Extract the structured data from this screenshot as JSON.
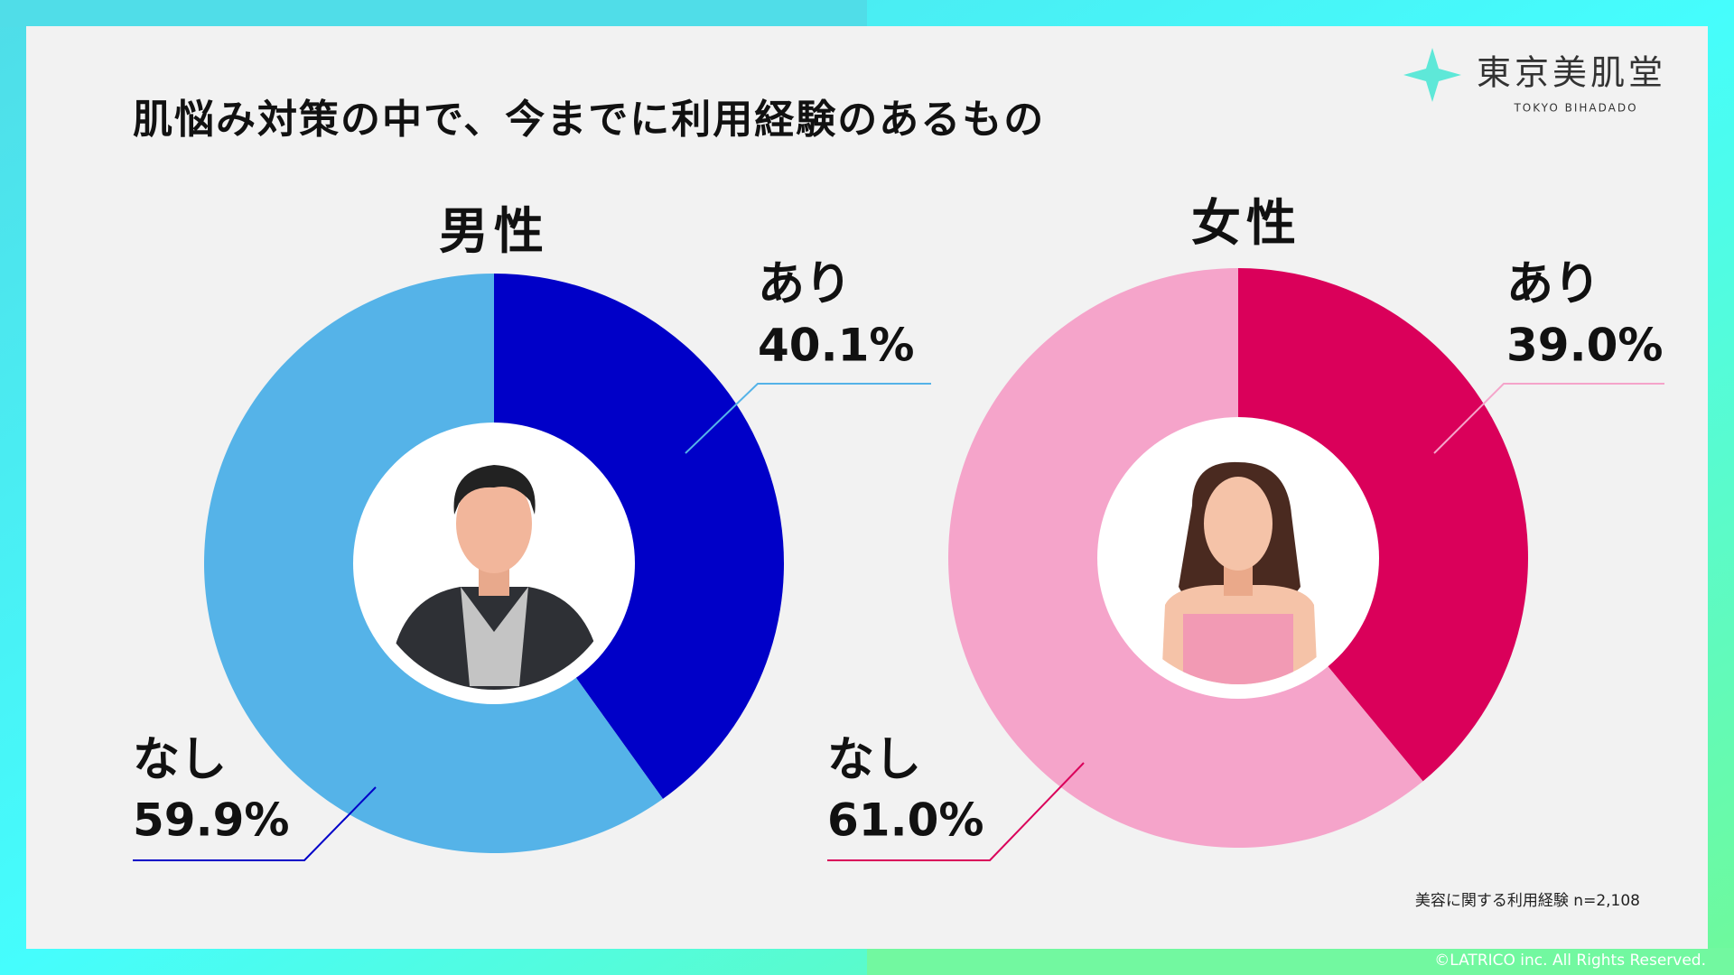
{
  "header": {
    "title": "肌悩み対策の中で、今までに利用経験のあるもの"
  },
  "logo": {
    "name": "東京美肌堂",
    "subtitle": "TOKYO BIHADADO"
  },
  "chart_data": [
    {
      "type": "donut",
      "title": "男性",
      "categories": [
        "あり",
        "なし"
      ],
      "values": [
        40.1,
        59.9
      ],
      "value_labels": [
        "40.1%",
        "59.9%"
      ],
      "colors": [
        "#0000c8",
        "#55b3e8"
      ]
    },
    {
      "type": "donut",
      "title": "女性",
      "categories": [
        "あり",
        "なし"
      ],
      "values": [
        39.0,
        61.0
      ],
      "value_labels": [
        "39.0%",
        "61.0%"
      ],
      "colors": [
        "#da005a",
        "#f5a4ca"
      ]
    }
  ],
  "note": "美容に関する利用経験 n=2,108",
  "copyright": "©LATRICO inc. All Rights Reserved."
}
